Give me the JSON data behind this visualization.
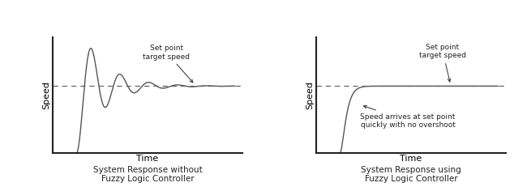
{
  "fig_width": 6.5,
  "fig_height": 2.31,
  "dpi": 100,
  "bg_color": "#ffffff",
  "plot_bg": "#ffffff",
  "line_color": "#555555",
  "dashed_color": "#666666",
  "setpoint": 0.58,
  "left_title": "System Response without\nFuzzy Logic Controller",
  "right_title": "System Response using\nFuzzy Logic Controller",
  "xlabel": "Time",
  "ylabel": "Speed",
  "annotation1_text": "Set point\ntarget speed",
  "annotation2_text": "Set point\ntarget speed",
  "annotation3_text": "Speed arrives at set point\nquickly with no overshoot",
  "title_fontsize": 7.5,
  "label_fontsize": 8,
  "annot_fontsize": 6.5
}
